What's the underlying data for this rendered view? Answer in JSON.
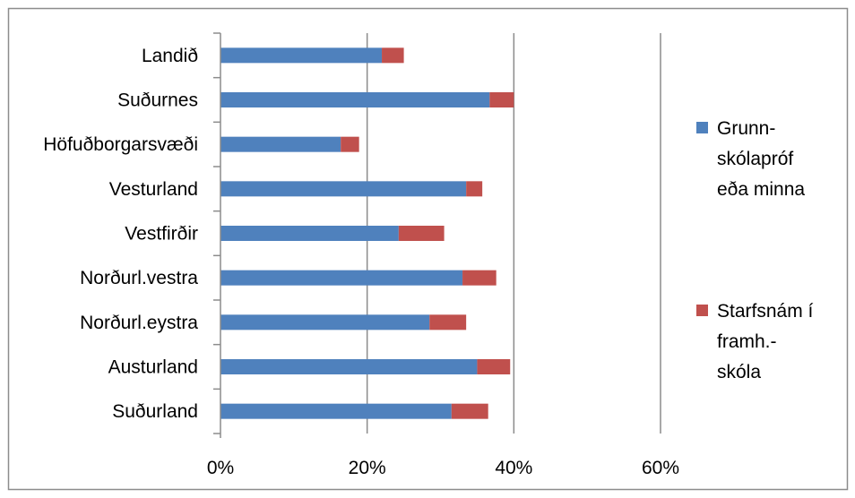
{
  "chart_data": {
    "type": "bar",
    "orientation": "horizontal",
    "stacked": true,
    "categories": [
      "Landið",
      "Suðurnes",
      "Höfuðborgarsvæði",
      "Vesturland",
      "Vestfirðir",
      "Norðurl.vestra",
      "Norðurl.eystra",
      "Austurland",
      "Suðurland"
    ],
    "series": [
      {
        "name": "Grunn-skólapróf eða minna",
        "legend_lines": [
          "Grunn-",
          "skólapróf",
          "eða minna"
        ],
        "color": "#4f81bd",
        "values": [
          22,
          36.7,
          16.4,
          33.5,
          24.3,
          33,
          28.5,
          35,
          31.5
        ]
      },
      {
        "name": "Starfsnám í framh.-skóla",
        "legend_lines": [
          "Starfsnám í",
          "framh.-",
          "skóla"
        ],
        "color": "#c0504d",
        "values": [
          3,
          3.3,
          2.5,
          2.2,
          6.2,
          4.6,
          5,
          4.5,
          5
        ]
      }
    ],
    "xlim": [
      0,
      60
    ],
    "xticks": [
      0,
      20,
      40,
      60
    ],
    "tick_labels": [
      "0%",
      "20%",
      "40%",
      "60%"
    ],
    "grid": "vertical",
    "legend_position": "right"
  }
}
